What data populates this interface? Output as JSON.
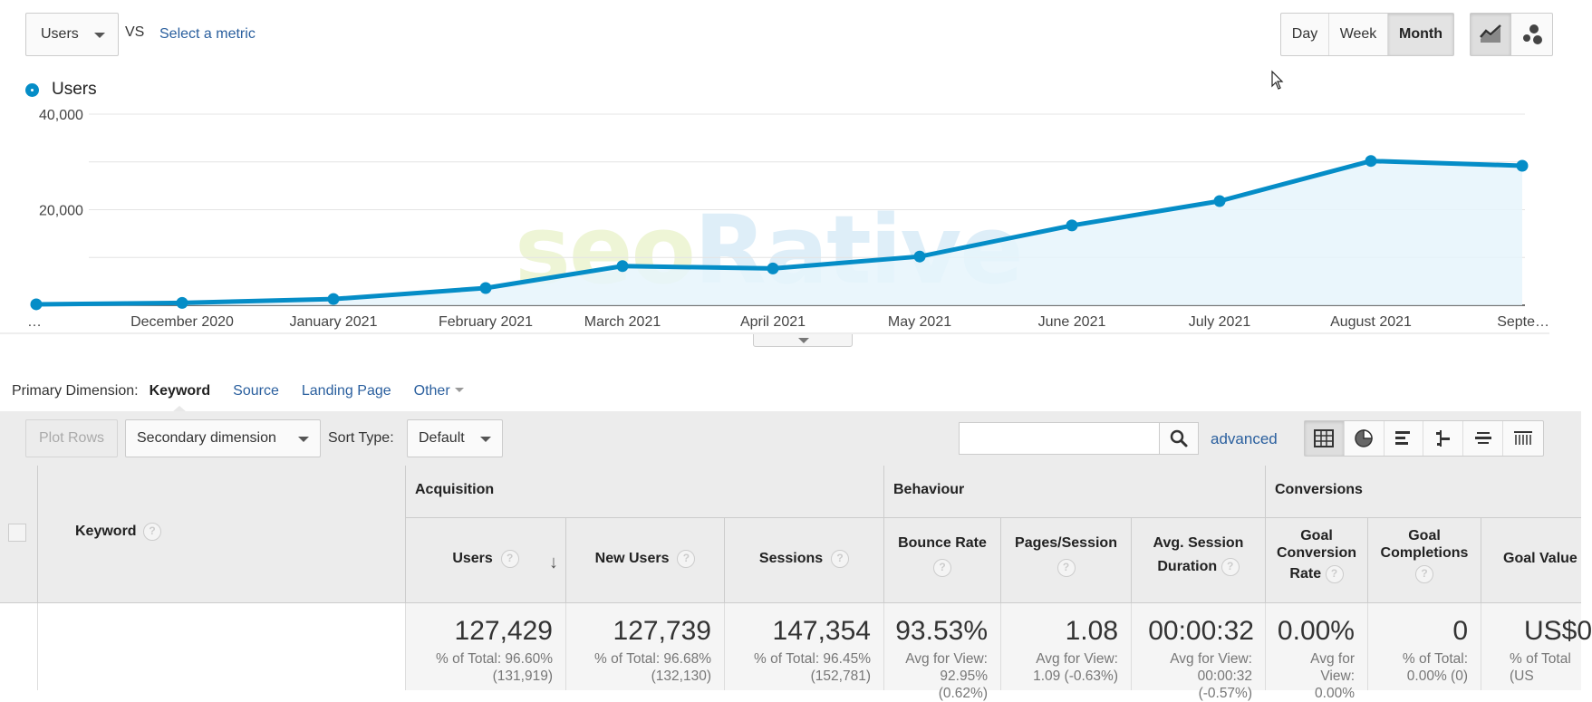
{
  "top_bar": {
    "metric_select": "Users",
    "vs_label": "VS",
    "select_metric_link": "Select a metric",
    "periods": [
      {
        "label": "Day",
        "active": false
      },
      {
        "label": "Week",
        "active": false
      },
      {
        "label": "Month",
        "active": true
      }
    ],
    "chart_types": [
      "line-chart-icon",
      "motion-chart-icon"
    ]
  },
  "colors": {
    "series": "#058dc7",
    "series_fill": "#e6f4fc",
    "link": "#2a5f9e",
    "header_bg": "#ececec"
  },
  "chart_data": {
    "type": "area",
    "legend": "Users",
    "series": [
      {
        "name": "Users",
        "x": [
          "…",
          "December 2020",
          "January 2021",
          "February 2021",
          "March 2021",
          "April 2021",
          "May 2021",
          "June 2021",
          "July 2021",
          "August 2021",
          "Septe…"
        ],
        "values": [
          200,
          500,
          1300,
          3600,
          8200,
          7700,
          10200,
          16700,
          21800,
          30200,
          29200
        ]
      }
    ],
    "y_ticks": [
      "40,000",
      "20,000"
    ],
    "ylim": [
      0,
      40000
    ],
    "grid": true
  },
  "watermark": {
    "part1": "seo",
    "part2": "Rative"
  },
  "primary_dimension": {
    "label": "Primary Dimension:",
    "items": [
      {
        "label": "Keyword",
        "active": true
      },
      {
        "label": "Source",
        "active": false
      },
      {
        "label": "Landing Page",
        "active": false
      },
      {
        "label": "Other",
        "active": false
      }
    ]
  },
  "toolbar": {
    "plot_rows": "Plot Rows",
    "secondary_dimension": "Secondary dimension",
    "sort_type_label": "Sort Type:",
    "sort_type_value": "Default",
    "search_value": "",
    "advanced": "advanced",
    "views": [
      "table-view-icon",
      "pie-chart-icon",
      "bar-performance-icon",
      "comparison-icon",
      "term-cloud-icon",
      "pivot-icon"
    ]
  },
  "table": {
    "keyword_header": "Keyword",
    "groups": {
      "acquisition": "Acquisition",
      "behaviour": "Behaviour",
      "conversions": "Conversions"
    },
    "columns": {
      "users": "Users",
      "new_users": "New Users",
      "sessions": "Sessions",
      "bounce_rate": "Bounce Rate",
      "pages_session": "Pages/Session",
      "avg_session_l1": "Avg. Session",
      "avg_session_l2": "Duration",
      "goal_conv_l1": "Goal",
      "goal_conv_l2": "Conversion",
      "goal_conv_l3": "Rate",
      "goal_comp_l1": "Goal",
      "goal_comp_l2": "Completions",
      "goal_value": "Goal Value"
    },
    "totals": {
      "users": {
        "big": "127,429",
        "small": "% of Total: 96.60%\n(131,919)"
      },
      "new_users": {
        "big": "127,739",
        "small": "% of Total: 96.68%\n(132,130)"
      },
      "sessions": {
        "big": "147,354",
        "small": "% of Total: 96.45%\n(152,781)"
      },
      "bounce_rate": {
        "big": "93.53%",
        "small": "Avg for View:\n92.95%\n(0.62%)"
      },
      "pages_session": {
        "big": "1.08",
        "small": "Avg for View:\n1.09 (-0.63%)"
      },
      "avg_session": {
        "big": "00:00:32",
        "small": "Avg for View:\n00:00:32\n(-0.57%)"
      },
      "goal_conv": {
        "big": "0.00%",
        "small": "Avg for\nView:\n0.00%"
      },
      "goal_comp": {
        "big": "0",
        "small": "% of Total:\n0.00% (0)"
      },
      "goal_value": {
        "big": "US$0",
        "small": "% of Total\n(US"
      }
    }
  }
}
